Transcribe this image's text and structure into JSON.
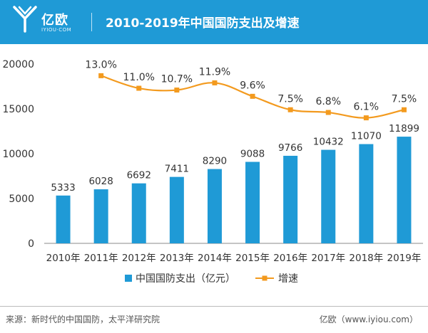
{
  "header": {
    "logo_name": "亿欧",
    "logo_domain": "IYIOU·COM",
    "title": "2010-2019年中国国防支出及增速"
  },
  "chart_data": {
    "type": "bar+line",
    "categories": [
      "2010年",
      "2011年",
      "2012年",
      "2013年",
      "2014年",
      "2015年",
      "2016年",
      "2017年",
      "2018年",
      "2019年"
    ],
    "series": [
      {
        "name": "中国国防支出（亿元）",
        "type": "bar",
        "color": "#1f9ad6",
        "values": [
          5333,
          6028,
          6692,
          7411,
          8290,
          9088,
          9766,
          10432,
          11070,
          11899
        ],
        "labels": [
          "5333",
          "6028",
          "6692",
          "7411",
          "8290",
          "9088",
          "9766",
          "10432",
          "11070",
          "11899"
        ]
      },
      {
        "name": "增速",
        "type": "line",
        "color": "#f39a1e",
        "values": [
          null,
          13.0,
          11.0,
          10.7,
          11.9,
          9.6,
          7.5,
          6.8,
          6.1,
          7.5
        ],
        "labels": [
          null,
          "13.0%",
          "11.0%",
          "10.7%",
          "11.9%",
          "9.6%",
          "7.5%",
          "6.8%",
          "6.1%",
          "7.5%"
        ],
        "display_values": [
          null,
          18700,
          17300,
          17100,
          17900,
          16400,
          14900,
          14600,
          14000,
          14900
        ]
      }
    ],
    "y_ticks": [
      "0",
      "5000",
      "10000",
      "15000",
      "20000"
    ],
    "ylim": [
      0,
      20000
    ],
    "legend": [
      "中国国防支出（亿元）",
      "增速"
    ]
  },
  "footer": {
    "source": "来源：新时代的中国国防，太平洋研究院",
    "credit": "亿欧（www.iyiou.com）"
  }
}
